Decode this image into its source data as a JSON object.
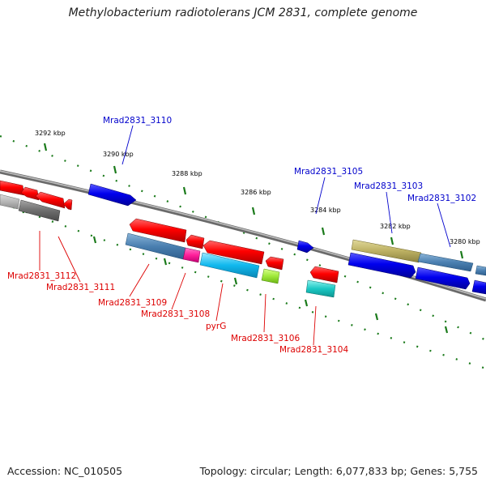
{
  "title": "Methylobacterium radiotolerans JCM 2831, complete genome",
  "footer": {
    "accession": "Accession: NC_010505",
    "topology": "Topology: circular; Length: 6,077,833 bp; Genes: 5,755"
  },
  "colors": {
    "forward_label": "#0000cc",
    "reverse_label": "#dd0000",
    "tick": "#1a7a1a",
    "backbone": "#7a7a7a"
  },
  "scale_labels": [
    "3292 kbp",
    "3290 kbp",
    "3288 kbp",
    "3286 kbp",
    "3284 kbp",
    "3282 kbp",
    "3280 kbp"
  ],
  "forward_labels": [
    "Mrad2831_3110",
    "Mrad2831_3105",
    "Mrad2831_3103",
    "Mrad2831_3102"
  ],
  "reverse_labels": [
    "Mrad2831_3112",
    "Mrad2831_3111",
    "Mrad2831_3109",
    "Mrad2831_3108",
    "pyrG",
    "Mrad2831_3106",
    "Mrad2831_3104"
  ]
}
